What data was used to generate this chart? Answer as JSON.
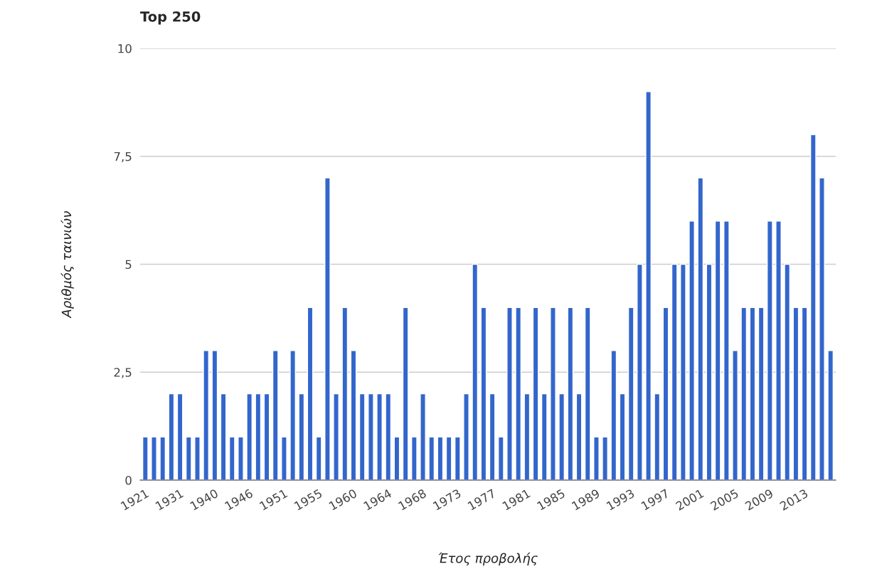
{
  "chart_data": {
    "type": "bar",
    "title": "Top 250",
    "xlabel": "Έτος προβολής",
    "ylabel": "Αριθμός ταινιών",
    "categories": [
      "1921",
      null,
      null,
      null,
      "1931",
      null,
      null,
      null,
      "1940",
      null,
      null,
      null,
      "1946",
      null,
      null,
      null,
      "1951",
      null,
      null,
      null,
      "1955",
      null,
      null,
      null,
      "1960",
      null,
      null,
      null,
      "1964",
      null,
      null,
      null,
      "1968",
      null,
      null,
      null,
      "1973",
      null,
      null,
      null,
      "1977",
      null,
      null,
      null,
      "1981",
      null,
      null,
      null,
      "1985",
      null,
      null,
      null,
      "1989",
      null,
      null,
      null,
      "1993",
      null,
      null,
      null,
      "1997",
      null,
      null,
      null,
      "2001",
      null,
      null,
      null,
      "2005",
      null,
      null,
      null,
      "2009",
      null,
      null,
      null,
      "2013",
      null,
      null,
      null
    ],
    "values": [
      1,
      1,
      1,
      2,
      2,
      1,
      1,
      3,
      3,
      2,
      1,
      1,
      2,
      2,
      2,
      3,
      1,
      3,
      2,
      4,
      1,
      7,
      2,
      4,
      3,
      2,
      2,
      2,
      2,
      1,
      4,
      1,
      2,
      1,
      1,
      1,
      1,
      2,
      5,
      4,
      2,
      1,
      4,
      4,
      2,
      4,
      2,
      4,
      2,
      4,
      2,
      4,
      1,
      1,
      3,
      2,
      4,
      5,
      9,
      2,
      4,
      5,
      5,
      6,
      7,
      5,
      6,
      6,
      3,
      4,
      4,
      4,
      6,
      6,
      5,
      4,
      4,
      8,
      7,
      3
    ],
    "color": "#3366cc",
    "ylim": [
      0,
      10
    ],
    "yticks": [
      0,
      {
        "value": 2.5,
        "label": "2,5"
      },
      5,
      {
        "value": 7.5,
        "label": "7,5"
      },
      10
    ],
    "grid": "y"
  }
}
